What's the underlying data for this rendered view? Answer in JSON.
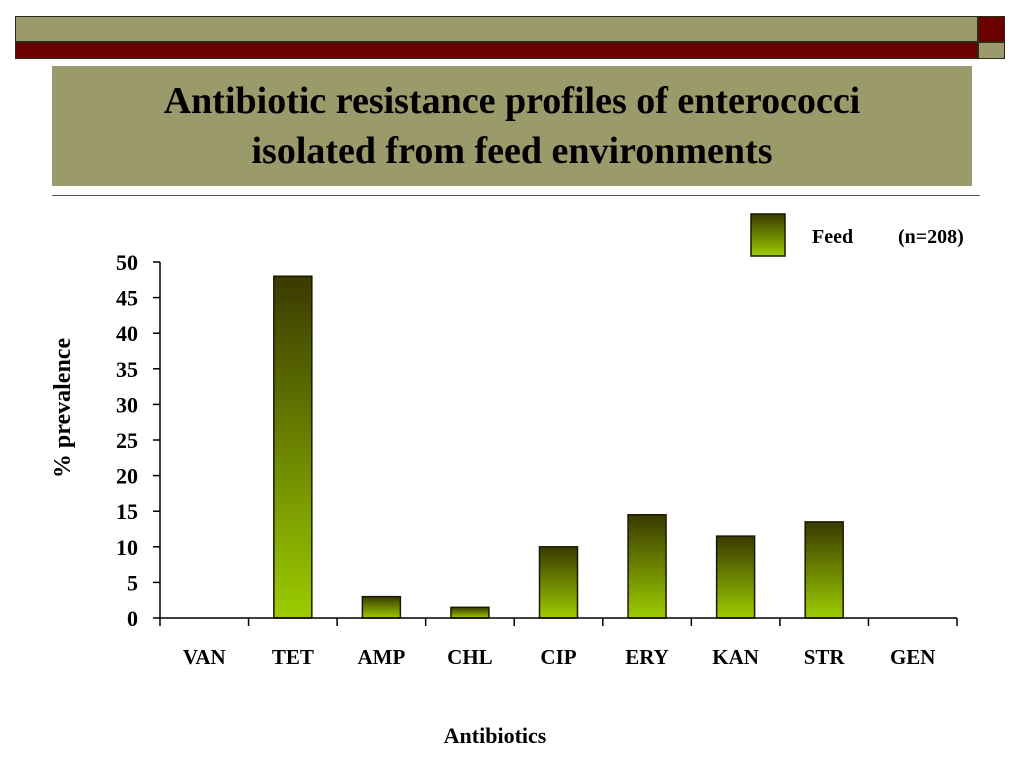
{
  "slide": {
    "title_line1": "Antibiotic resistance profiles of enterococci",
    "title_line2": "isolated from feed environments",
    "colors": {
      "olive": "#9a9a6a",
      "maroon": "#6a0000",
      "bar_top": "#3a3a00",
      "bar_bottom": "#9ccc00"
    }
  },
  "chart_data": {
    "type": "bar",
    "title": "Antibiotic resistance profiles of enterococci isolated from feed environments",
    "xlabel": "Antibiotics",
    "ylabel": "%  prevalence",
    "categories": [
      "VAN",
      "TET",
      "AMP",
      "CHL",
      "CIP",
      "ERY",
      "KAN",
      "STR",
      "GEN"
    ],
    "series": [
      {
        "name": "Feed",
        "note": "(n=208)",
        "values": [
          0,
          48,
          3,
          1.5,
          10,
          14.5,
          11.5,
          13.5,
          0
        ]
      }
    ],
    "ylim": [
      0,
      50
    ],
    "yticks": [
      0,
      5,
      10,
      15,
      20,
      25,
      30,
      35,
      40,
      45,
      50
    ],
    "grid": false,
    "legend": {
      "position": "top-right",
      "entries": [
        "Feed"
      ],
      "extra_text": "(n=208)"
    }
  }
}
